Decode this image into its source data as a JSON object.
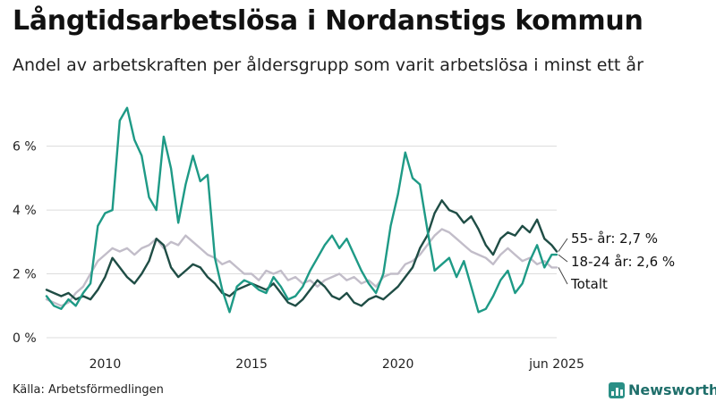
{
  "title": "Långtidsarbetslösa i Nordanstigs kommun",
  "subtitle": "Andel av arbetskraften per åldersgrupp som varit arbetslösa i minst ett år",
  "source": "Källa: Arbetsförmedlingen",
  "brand": "Newsworthy",
  "chart_data": {
    "type": "line",
    "title": "Långtidsarbetslösa i Nordanstigs kommun",
    "xlabel": "",
    "ylabel": "",
    "xlim": [
      2008.0,
      2025.42
    ],
    "ylim": [
      0,
      7.5
    ],
    "yticks": [
      0,
      2,
      4,
      6
    ],
    "ytick_labels": [
      "0 %",
      "2 %",
      "4 %",
      "6 %"
    ],
    "xticks": [
      2010,
      2015,
      2020,
      2025.42
    ],
    "xtick_labels": [
      "2010",
      "2015",
      "2020",
      "jun 2025"
    ],
    "grid": true,
    "series": [
      {
        "name": "Totalt",
        "label": "Totalt",
        "color": "#c2bdc9",
        "x": [
          2008.0,
          2008.25,
          2008.5,
          2008.75,
          2009.0,
          2009.25,
          2009.5,
          2009.75,
          2010.0,
          2010.25,
          2010.5,
          2010.75,
          2011.0,
          2011.25,
          2011.5,
          2011.75,
          2012.0,
          2012.25,
          2012.5,
          2012.75,
          2013.0,
          2013.25,
          2013.5,
          2013.75,
          2014.0,
          2014.25,
          2014.5,
          2014.75,
          2015.0,
          2015.25,
          2015.5,
          2015.75,
          2016.0,
          2016.25,
          2016.5,
          2016.75,
          2017.0,
          2017.25,
          2017.5,
          2017.75,
          2018.0,
          2018.25,
          2018.5,
          2018.75,
          2019.0,
          2019.25,
          2019.5,
          2019.75,
          2020.0,
          2020.25,
          2020.5,
          2020.75,
          2021.0,
          2021.25,
          2021.5,
          2021.75,
          2022.0,
          2022.25,
          2022.5,
          2022.75,
          2023.0,
          2023.25,
          2023.5,
          2023.75,
          2024.0,
          2024.25,
          2024.5,
          2024.75,
          2025.0,
          2025.25,
          2025.42
        ],
        "values": [
          1.2,
          1.1,
          1.0,
          1.1,
          1.4,
          1.6,
          2.0,
          2.4,
          2.6,
          2.8,
          2.7,
          2.8,
          2.6,
          2.8,
          2.9,
          3.1,
          2.8,
          3.0,
          2.9,
          3.2,
          3.0,
          2.8,
          2.6,
          2.5,
          2.3,
          2.4,
          2.2,
          2.0,
          2.0,
          1.8,
          2.1,
          2.0,
          2.1,
          1.8,
          1.9,
          1.7,
          1.8,
          1.6,
          1.8,
          1.9,
          2.0,
          1.8,
          1.9,
          1.7,
          1.8,
          1.6,
          1.9,
          2.0,
          2.0,
          2.3,
          2.4,
          2.6,
          2.9,
          3.2,
          3.4,
          3.3,
          3.1,
          2.9,
          2.7,
          2.6,
          2.5,
          2.3,
          2.6,
          2.8,
          2.6,
          2.4,
          2.5,
          2.3,
          2.4,
          2.2,
          2.2
        ]
      },
      {
        "name": "55- år",
        "label": "55- år: 2,7 %",
        "color": "#1f4d45",
        "x": [
          2008.0,
          2008.25,
          2008.5,
          2008.75,
          2009.0,
          2009.25,
          2009.5,
          2009.75,
          2010.0,
          2010.25,
          2010.5,
          2010.75,
          2011.0,
          2011.25,
          2011.5,
          2011.75,
          2012.0,
          2012.25,
          2012.5,
          2012.75,
          2013.0,
          2013.25,
          2013.5,
          2013.75,
          2014.0,
          2014.25,
          2014.5,
          2014.75,
          2015.0,
          2015.25,
          2015.5,
          2015.75,
          2016.0,
          2016.25,
          2016.5,
          2016.75,
          2017.0,
          2017.25,
          2017.5,
          2017.75,
          2018.0,
          2018.25,
          2018.5,
          2018.75,
          2019.0,
          2019.25,
          2019.5,
          2019.75,
          2020.0,
          2020.25,
          2020.5,
          2020.75,
          2021.0,
          2021.25,
          2021.5,
          2021.75,
          2022.0,
          2022.25,
          2022.5,
          2022.75,
          2023.0,
          2023.25,
          2023.5,
          2023.75,
          2024.0,
          2024.25,
          2024.5,
          2024.75,
          2025.0,
          2025.25,
          2025.42
        ],
        "values": [
          1.5,
          1.4,
          1.3,
          1.4,
          1.2,
          1.3,
          1.2,
          1.5,
          1.9,
          2.5,
          2.2,
          1.9,
          1.7,
          2.0,
          2.4,
          3.1,
          2.9,
          2.2,
          1.9,
          2.1,
          2.3,
          2.2,
          1.9,
          1.7,
          1.4,
          1.3,
          1.5,
          1.6,
          1.7,
          1.6,
          1.5,
          1.7,
          1.4,
          1.1,
          1.0,
          1.2,
          1.5,
          1.8,
          1.6,
          1.3,
          1.2,
          1.4,
          1.1,
          1.0,
          1.2,
          1.3,
          1.2,
          1.4,
          1.6,
          1.9,
          2.2,
          2.8,
          3.2,
          3.9,
          4.3,
          4.0,
          3.9,
          3.6,
          3.8,
          3.4,
          2.9,
          2.6,
          3.1,
          3.3,
          3.2,
          3.5,
          3.3,
          3.7,
          3.1,
          2.9,
          2.7
        ]
      },
      {
        "name": "18-24 år",
        "label": "18-24 år: 2,6 %",
        "color": "#1e9a86",
        "x": [
          2008.0,
          2008.25,
          2008.5,
          2008.75,
          2009.0,
          2009.25,
          2009.5,
          2009.75,
          2010.0,
          2010.25,
          2010.5,
          2010.75,
          2011.0,
          2011.25,
          2011.5,
          2011.75,
          2012.0,
          2012.25,
          2012.5,
          2012.75,
          2013.0,
          2013.25,
          2013.5,
          2013.75,
          2014.0,
          2014.25,
          2014.5,
          2014.75,
          2015.0,
          2015.25,
          2015.5,
          2015.75,
          2016.0,
          2016.25,
          2016.5,
          2016.75,
          2017.0,
          2017.25,
          2017.5,
          2017.75,
          2018.0,
          2018.25,
          2018.5,
          2018.75,
          2019.0,
          2019.25,
          2019.5,
          2019.75,
          2020.0,
          2020.25,
          2020.5,
          2020.75,
          2021.0,
          2021.25,
          2021.5,
          2021.75,
          2022.0,
          2022.25,
          2022.5,
          2022.75,
          2023.0,
          2023.25,
          2023.5,
          2023.75,
          2024.0,
          2024.25,
          2024.5,
          2024.75,
          2025.0,
          2025.25,
          2025.42
        ],
        "values": [
          1.3,
          1.0,
          0.9,
          1.2,
          1.0,
          1.4,
          1.7,
          3.5,
          3.9,
          4.0,
          6.8,
          7.2,
          6.2,
          5.7,
          4.4,
          4.0,
          6.3,
          5.3,
          3.6,
          4.8,
          5.7,
          4.9,
          5.1,
          2.5,
          1.5,
          0.8,
          1.6,
          1.8,
          1.7,
          1.5,
          1.4,
          1.9,
          1.6,
          1.2,
          1.3,
          1.6,
          2.1,
          2.5,
          2.9,
          3.2,
          2.8,
          3.1,
          2.6,
          2.1,
          1.7,
          1.4,
          2.0,
          3.5,
          4.5,
          5.8,
          5.0,
          4.8,
          3.4,
          2.1,
          2.3,
          2.5,
          1.9,
          2.4,
          1.6,
          0.8,
          0.9,
          1.3,
          1.8,
          2.1,
          1.4,
          1.7,
          2.4,
          2.9,
          2.2,
          2.6,
          2.6
        ]
      }
    ],
    "end_labels": [
      "55- år: 2,7 %",
      "18-24 år: 2,6 %",
      "Totalt"
    ]
  }
}
